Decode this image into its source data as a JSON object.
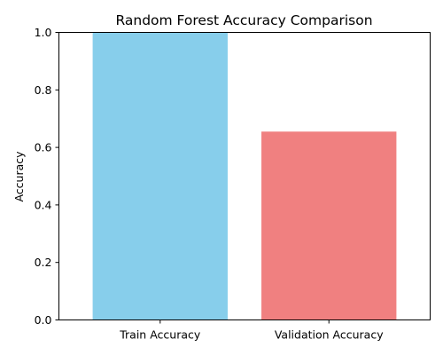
{
  "chart_data": {
    "type": "bar",
    "title": "Random Forest Accuracy Comparison",
    "xlabel": "",
    "ylabel": "Accuracy",
    "categories": [
      "Train Accuracy",
      "Validation Accuracy"
    ],
    "values": [
      1.0,
      0.655
    ],
    "colors": [
      "#87CEEB",
      "#F08080"
    ],
    "ylim": [
      0,
      1.0
    ],
    "yticks": [
      0.0,
      0.2,
      0.4,
      0.6,
      0.8,
      1.0
    ],
    "ytick_labels": [
      "0.0",
      "0.2",
      "0.4",
      "0.6",
      "0.8",
      "1.0"
    ],
    "grid": false,
    "legend": "none"
  }
}
